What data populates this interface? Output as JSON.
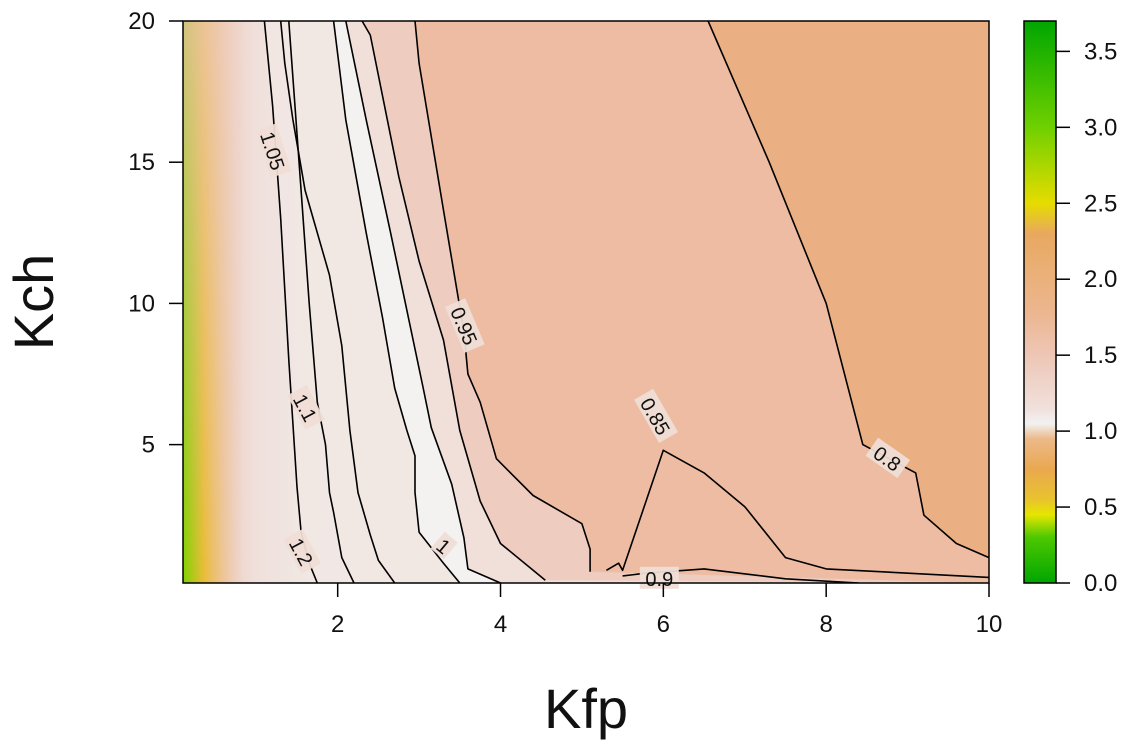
{
  "chart_data": {
    "type": "heatmap",
    "subtype": "filled contour",
    "title": "",
    "xlabel": "Kfp",
    "ylabel": "Kch",
    "xlim": [
      0.1,
      10
    ],
    "ylim": [
      0.1,
      20
    ],
    "x_ticks": [
      {
        "value": 2,
        "label": "2"
      },
      {
        "value": 4,
        "label": "4"
      },
      {
        "value": 6,
        "label": "6"
      },
      {
        "value": 8,
        "label": "8"
      },
      {
        "value": 10,
        "label": "10"
      }
    ],
    "y_ticks": [
      {
        "value": 5,
        "label": "5"
      },
      {
        "value": 10,
        "label": "10"
      },
      {
        "value": 15,
        "label": "15"
      },
      {
        "value": 20,
        "label": "20"
      }
    ],
    "colorbar": {
      "range": [
        0,
        3.7
      ],
      "ticks": [
        {
          "value": 0.0,
          "label": "0.0"
        },
        {
          "value": 0.5,
          "label": "0.5"
        },
        {
          "value": 1.0,
          "label": "1.0"
        },
        {
          "value": 1.5,
          "label": "1.5"
        },
        {
          "value": 2.0,
          "label": "2.0"
        },
        {
          "value": 2.5,
          "label": "2.5"
        },
        {
          "value": 3.0,
          "label": "3.0"
        },
        {
          "value": 3.5,
          "label": "3.5"
        }
      ],
      "stops": [
        {
          "value": 0.0,
          "color": "#00a600"
        },
        {
          "value": 0.3,
          "color": "#4dc800"
        },
        {
          "value": 0.45,
          "color": "#e6e600"
        },
        {
          "value": 0.55,
          "color": "#e8c32e"
        },
        {
          "value": 0.75,
          "color": "#eaa84f"
        },
        {
          "value": 0.95,
          "color": "#ecb98a"
        },
        {
          "value": 1.05,
          "color": "#f2f2f2"
        },
        {
          "value": 1.15,
          "color": "#f0e0dc"
        },
        {
          "value": 1.5,
          "color": "#eec6b6"
        },
        {
          "value": 1.8,
          "color": "#ecb58d"
        },
        {
          "value": 2.0,
          "color": "#eab17c"
        },
        {
          "value": 2.3,
          "color": "#e8a85f"
        },
        {
          "value": 2.5,
          "color": "#e6dc00"
        },
        {
          "value": 3.0,
          "color": "#6fd000"
        },
        {
          "value": 3.7,
          "color": "#00a600"
        }
      ]
    },
    "field_points": [
      {
        "kfp": 0.1,
        "kch": 0.1,
        "value": 0.2
      },
      {
        "kfp": 0.12,
        "kch": 20,
        "value": 1.6
      },
      {
        "kfp": 0.5,
        "kch": 20,
        "value": 1.45
      },
      {
        "kfp": 1.0,
        "kch": 20,
        "value": 1.15
      },
      {
        "kfp": 2.0,
        "kch": 20,
        "value": 1.04
      },
      {
        "kfp": 3.0,
        "kch": 20,
        "value": 1.0
      },
      {
        "kfp": 5.0,
        "kch": 20,
        "value": 0.88
      },
      {
        "kfp": 7.0,
        "kch": 20,
        "value": 0.8
      },
      {
        "kfp": 10.0,
        "kch": 20,
        "value": 0.72
      }
    ],
    "contours": [
      {
        "level": 1.2,
        "label": "1.2",
        "label_at": {
          "kfp": 1.55,
          "kch": 1.2
        },
        "label_angle": 62,
        "points": [
          [
            1.75,
            0.1
          ],
          [
            1.65,
            0.8
          ],
          [
            1.55,
            1.9
          ],
          [
            1.5,
            3.5
          ],
          [
            1.4,
            8
          ],
          [
            1.3,
            13
          ],
          [
            1.2,
            17
          ],
          [
            1.1,
            20
          ]
        ]
      },
      {
        "level": 1.1,
        "label": "1.1",
        "label_at": {
          "kfp": 1.6,
          "kch": 6.3
        },
        "label_angle": 62,
        "points": [
          [
            2.2,
            0.1
          ],
          [
            2.05,
            1.0
          ],
          [
            1.95,
            2.6
          ],
          [
            1.9,
            3.3
          ],
          [
            1.85,
            5.0
          ],
          [
            1.75,
            6.5
          ],
          [
            1.65,
            10
          ],
          [
            1.55,
            14
          ],
          [
            1.45,
            18
          ],
          [
            1.4,
            20
          ]
        ]
      },
      {
        "level": 1.05,
        "label": "1.05",
        "label_at": {
          "kfp": 1.2,
          "kch": 15.4
        },
        "label_angle": 72,
        "points": [
          [
            2.7,
            0.1
          ],
          [
            2.5,
            0.9
          ],
          [
            2.4,
            1.8
          ],
          [
            2.25,
            3.3
          ],
          [
            2.15,
            5.5
          ],
          [
            2.05,
            8.5
          ],
          [
            1.9,
            11
          ],
          [
            1.6,
            14
          ],
          [
            1.45,
            16.5
          ],
          [
            1.35,
            18.5
          ],
          [
            1.3,
            20
          ]
        ]
      },
      {
        "level": 1.0,
        "label": "1",
        "label_at": {
          "kfp": 3.3,
          "kch": 1.4
        },
        "label_angle": 40,
        "points": [
          [
            3.5,
            0.1
          ],
          [
            3.3,
            0.8
          ],
          [
            3.0,
            1.9
          ],
          [
            2.95,
            3.3
          ],
          [
            2.95,
            4.6
          ],
          [
            2.85,
            5.5
          ],
          [
            2.7,
            7.0
          ],
          [
            2.55,
            9.5
          ],
          [
            2.35,
            12.5
          ],
          [
            2.1,
            16.5
          ],
          [
            1.95,
            20
          ]
        ]
      },
      {
        "level": 0.95,
        "label": "0.95",
        "label_at": {
          "kfp": 3.55,
          "kch": 9.2
        },
        "label_angle": 67,
        "points": [
          [
            4.0,
            0.1
          ],
          [
            3.6,
            0.6
          ],
          [
            3.55,
            1.7
          ],
          [
            3.4,
            3.6
          ],
          [
            3.15,
            5.6
          ],
          [
            3.05,
            7.0
          ],
          [
            2.65,
            12.5
          ],
          [
            2.35,
            16.5
          ],
          [
            2.1,
            20
          ]
        ]
      },
      {
        "level": 0.9,
        "label": "0.9",
        "label_at": {
          "kfp": 5.95,
          "kch": 0.25
        },
        "label_angle": 0,
        "points": [
          [
            4.55,
            0.2
          ],
          [
            4.0,
            1.5
          ],
          [
            3.75,
            3.0
          ],
          [
            3.5,
            5.5
          ],
          [
            3.3,
            8.7
          ],
          [
            3.0,
            11.5
          ],
          [
            2.75,
            14.5
          ],
          [
            2.4,
            19.5
          ],
          [
            2.3,
            20
          ],
          null,
          [
            5.5,
            0.35
          ],
          [
            5.8,
            0.45
          ],
          [
            6.5,
            0.6
          ],
          [
            7.5,
            0.25
          ],
          [
            8.4,
            0.1
          ]
        ]
      },
      {
        "level": 0.85,
        "label": "0.85",
        "label_at": {
          "kfp": 5.9,
          "kch": 6.0
        },
        "label_angle": 60,
        "points": [
          [
            5.1,
            0.5
          ],
          [
            5.1,
            1.3
          ],
          [
            5.0,
            2.2
          ],
          [
            4.4,
            3.2
          ],
          [
            3.95,
            4.5
          ],
          [
            3.75,
            6.5
          ],
          [
            3.6,
            7.5
          ],
          [
            3.55,
            9.0
          ],
          [
            3.3,
            13.3
          ],
          [
            3.0,
            18.5
          ],
          [
            2.95,
            20
          ],
          null,
          [
            5.3,
            0.55
          ],
          [
            5.45,
            0.8
          ],
          [
            5.5,
            0.55
          ],
          [
            6.0,
            4.8
          ],
          [
            6.5,
            4.0
          ],
          [
            7.0,
            2.8
          ],
          [
            7.5,
            1.0
          ],
          [
            8.0,
            0.6
          ],
          [
            10.0,
            0.3
          ]
        ]
      },
      {
        "level": 0.8,
        "label": "0.8",
        "label_at": {
          "kfp": 8.75,
          "kch": 4.5
        },
        "label_angle": 35,
        "points": [
          [
            6.55,
            20
          ],
          [
            7.3,
            15
          ],
          [
            8.0,
            10
          ],
          [
            8.45,
            5.0
          ],
          [
            9.1,
            4.0
          ],
          [
            9.2,
            2.5
          ],
          [
            9.6,
            1.5
          ],
          [
            10.0,
            1.0
          ]
        ]
      }
    ]
  }
}
